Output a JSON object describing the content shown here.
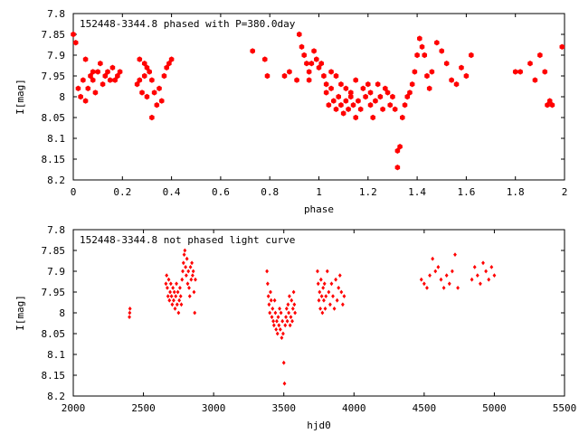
{
  "chart_data": [
    {
      "type": "scatter",
      "title": "152448-3344.8 phased with P=380.0day",
      "xlabel": "phase",
      "ylabel": "I[mag]",
      "xlim": [
        0,
        2
      ],
      "ylim": [
        7.8,
        8.2
      ],
      "y_inverted": true,
      "xticks": [
        "0",
        "0.2",
        "0.4",
        "0.6",
        "0.8",
        "1",
        "1.2",
        "1.4",
        "1.6",
        "1.8",
        "2"
      ],
      "yticks": [
        "7.8",
        "7.85",
        "7.9",
        "7.95",
        "8",
        "8.05",
        "8.1",
        "8.15",
        "8.2"
      ],
      "marker": "filled-hexagon",
      "color": "#ff0000",
      "series": [
        {
          "x": [
            0.0,
            0.01,
            0.02,
            0.03,
            0.04,
            0.05,
            0.05,
            0.06,
            0.07,
            0.08,
            0.08,
            0.09,
            0.1,
            0.11,
            0.12,
            0.13,
            0.14,
            0.15,
            0.16,
            0.17,
            0.18,
            0.19,
            0.26,
            0.27,
            0.27,
            0.28,
            0.29,
            0.29,
            0.3,
            0.3,
            0.31,
            0.32,
            0.32,
            0.33,
            0.34,
            0.35,
            0.36,
            0.37,
            0.38,
            0.39,
            0.4,
            0.73,
            0.78,
            0.79,
            0.86,
            0.88,
            0.91,
            0.92,
            0.93,
            0.94,
            0.95,
            0.96,
            0.96,
            0.97,
            0.98,
            0.99,
            1.0,
            1.01,
            1.02,
            1.03,
            1.03,
            1.04,
            1.05,
            1.05,
            1.06,
            1.07,
            1.07,
            1.08,
            1.09,
            1.09,
            1.1,
            1.11,
            1.11,
            1.12,
            1.13,
            1.13,
            1.14,
            1.15,
            1.15,
            1.16,
            1.17,
            1.18,
            1.19,
            1.2,
            1.21,
            1.21,
            1.22,
            1.23,
            1.24,
            1.25,
            1.26,
            1.27,
            1.28,
            1.29,
            1.3,
            1.31,
            1.32,
            1.32,
            1.33,
            1.34,
            1.35,
            1.36,
            1.37,
            1.38,
            1.39,
            1.4,
            1.41,
            1.42,
            1.43,
            1.44,
            1.45,
            1.46,
            1.48,
            1.5,
            1.52,
            1.54,
            1.56,
            1.58,
            1.6,
            1.62,
            1.8,
            1.82,
            1.86,
            1.88,
            1.9,
            1.92,
            1.93,
            1.94,
            1.95,
            1.99
          ],
          "y": [
            7.85,
            7.87,
            7.98,
            8.0,
            7.96,
            7.91,
            8.01,
            7.98,
            7.95,
            7.94,
            7.96,
            7.99,
            7.94,
            7.92,
            7.97,
            7.95,
            7.94,
            7.96,
            7.93,
            7.96,
            7.95,
            7.94,
            7.97,
            7.91,
            7.96,
            7.99,
            7.95,
            7.92,
            7.93,
            8.0,
            7.94,
            7.96,
            8.05,
            7.99,
            8.02,
            7.98,
            8.01,
            7.95,
            7.93,
            7.92,
            7.91,
            7.89,
            7.91,
            7.95,
            7.95,
            7.94,
            7.96,
            7.85,
            7.88,
            7.9,
            7.92,
            7.94,
            7.96,
            7.92,
            7.89,
            7.91,
            7.93,
            7.92,
            7.95,
            7.97,
            7.99,
            8.02,
            7.94,
            7.98,
            8.01,
            8.03,
            7.95,
            8.0,
            8.02,
            7.97,
            8.04,
            8.01,
            7.98,
            8.03,
            7.99,
            8.0,
            8.02,
            7.96,
            8.05,
            8.01,
            8.03,
            7.98,
            8.0,
            7.97,
            8.02,
            7.99,
            8.05,
            8.01,
            7.97,
            8.0,
            8.03,
            7.98,
            7.99,
            8.02,
            8.0,
            8.03,
            8.17,
            8.13,
            8.12,
            8.05,
            8.02,
            8.0,
            7.99,
            7.97,
            7.94,
            7.9,
            7.86,
            7.88,
            7.9,
            7.95,
            7.98,
            7.94,
            7.87,
            7.89,
            7.92,
            7.96,
            7.97,
            7.93,
            7.95,
            7.9,
            7.94,
            7.94,
            7.92,
            7.96,
            7.9,
            7.94,
            8.02,
            8.01,
            8.02,
            7.88
          ],
          "name": ""
        }
      ]
    },
    {
      "type": "scatter",
      "title": "152448-3344.8 not phased light curve",
      "xlabel": "hjd0",
      "ylabel": "I[mag]",
      "xlim": [
        2000,
        5500
      ],
      "ylim": [
        7.8,
        8.2
      ],
      "y_inverted": true,
      "xticks": [
        "2000",
        "2500",
        "3000",
        "3500",
        "4000",
        "4500",
        "5000",
        "5500"
      ],
      "yticks": [
        "7.8",
        "7.85",
        "7.9",
        "7.95",
        "8",
        "8.05",
        "8.1",
        "8.15",
        "8.2"
      ],
      "marker": "small-diamond",
      "color": "#ff0000",
      "series": [
        {
          "x": [
            2400,
            2402,
            2404,
            2660,
            2665,
            2670,
            2675,
            2680,
            2685,
            2690,
            2695,
            2700,
            2705,
            2710,
            2715,
            2720,
            2725,
            2730,
            2735,
            2740,
            2745,
            2750,
            2755,
            2760,
            2765,
            2770,
            2775,
            2780,
            2785,
            2790,
            2795,
            2800,
            2805,
            2810,
            2815,
            2820,
            2825,
            2830,
            2835,
            2840,
            2845,
            2850,
            2855,
            2860,
            2865,
            2870,
            3380,
            3385,
            3390,
            3395,
            3400,
            3405,
            3410,
            3415,
            3420,
            3425,
            3430,
            3435,
            3440,
            3445,
            3450,
            3455,
            3460,
            3465,
            3470,
            3475,
            3480,
            3485,
            3490,
            3495,
            3500,
            3505,
            3510,
            3515,
            3520,
            3525,
            3530,
            3535,
            3540,
            3545,
            3550,
            3555,
            3560,
            3565,
            3570,
            3575,
            3580,
            3740,
            3745,
            3750,
            3755,
            3760,
            3765,
            3770,
            3775,
            3780,
            3785,
            3790,
            3795,
            3800,
            3810,
            3820,
            3830,
            3840,
            3850,
            3860,
            3870,
            3880,
            3890,
            3900,
            3910,
            3920,
            3930,
            4480,
            4500,
            4520,
            4540,
            4560,
            4580,
            4600,
            4620,
            4640,
            4660,
            4680,
            4700,
            4720,
            4740,
            4840,
            4860,
            4880,
            4900,
            4920,
            4940,
            4960,
            4980,
            5000
          ],
          "y": [
            8.01,
            8.0,
            7.99,
            7.93,
            7.91,
            7.94,
            7.96,
            7.92,
            7.97,
            7.95,
            7.93,
            7.96,
            7.98,
            7.94,
            7.97,
            7.95,
            7.99,
            7.96,
            7.93,
            7.98,
            7.95,
            8.0,
            7.97,
            7.94,
            7.96,
            7.98,
            7.92,
            7.9,
            7.88,
            7.86,
            7.85,
            7.89,
            7.91,
            7.87,
            7.93,
            7.9,
            7.94,
            7.96,
            7.89,
            7.92,
            7.88,
            7.91,
            7.9,
            7.95,
            8.0,
            7.92,
            7.9,
            7.93,
            7.96,
            7.98,
            8.0,
            7.95,
            7.97,
            8.01,
            7.99,
            8.02,
            8.03,
            7.97,
            8.0,
            8.04,
            8.02,
            8.05,
            8.01,
            8.03,
            7.99,
            8.04,
            8.0,
            8.06,
            8.02,
            8.05,
            8.12,
            8.17,
            8.03,
            8.01,
            7.99,
            8.02,
            7.98,
            8.0,
            7.96,
            8.03,
            8.01,
            7.97,
            8.02,
            7.99,
            7.95,
            7.98,
            8.0,
            7.9,
            7.93,
            7.97,
            7.95,
            7.99,
            7.92,
            7.96,
            8.0,
            7.94,
            7.97,
            7.93,
            7.99,
            7.96,
            7.9,
            7.95,
            7.98,
            7.93,
            7.96,
            7.99,
            7.92,
            7.97,
            7.94,
            7.91,
            7.95,
            7.98,
            7.96,
            7.92,
            7.93,
            7.94,
            7.91,
            7.87,
            7.9,
            7.89,
            7.92,
            7.94,
            7.91,
            7.93,
            7.9,
            7.86,
            7.94,
            7.92,
            7.89,
            7.91,
            7.93,
            7.88,
            7.9,
            7.92,
            7.89,
            7.91
          ],
          "name": ""
        }
      ]
    }
  ]
}
